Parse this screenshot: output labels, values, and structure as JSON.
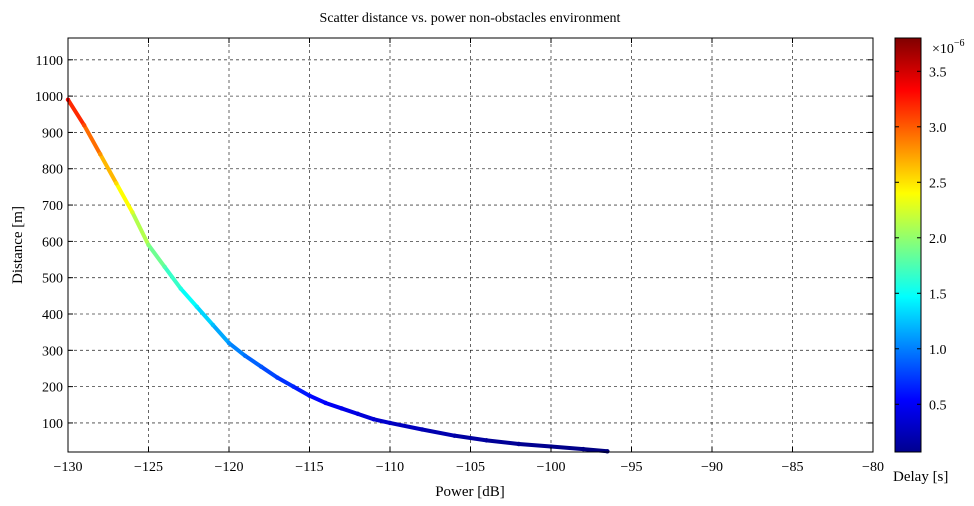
{
  "chart_data": {
    "type": "scatter",
    "title": "Scatter distance vs. power non-obstacles environment",
    "xlabel": "Power [dB]",
    "ylabel": "Distance [m]",
    "xlim": [
      -130,
      -80
    ],
    "ylim": [
      20,
      1160
    ],
    "xticks": [
      -130,
      -125,
      -120,
      -115,
      -110,
      -105,
      -100,
      -95,
      -90,
      -85,
      -80
    ],
    "yticks": [
      100,
      200,
      300,
      400,
      500,
      600,
      700,
      800,
      900,
      1000,
      1100
    ],
    "x_tick_labels": [
      "−130",
      "−125",
      "−120",
      "−115",
      "−110",
      "−105",
      "−100",
      "−95",
      "−90",
      "−85",
      "−80"
    ],
    "y_tick_labels": [
      "100",
      "200",
      "300",
      "400",
      "500",
      "600",
      "700",
      "800",
      "900",
      "1000",
      "1100"
    ],
    "grid": true,
    "series": [
      {
        "points": [
          {
            "x": -130.0,
            "y": 990,
            "delay": 3.3
          },
          {
            "x": -129.0,
            "y": 920,
            "delay": 3.07
          },
          {
            "x": -128.0,
            "y": 840,
            "delay": 2.8
          },
          {
            "x": -127.0,
            "y": 760,
            "delay": 2.53
          },
          {
            "x": -126.0,
            "y": 680,
            "delay": 2.27
          },
          {
            "x": -125.0,
            "y": 590,
            "delay": 1.97
          },
          {
            "x": -124.0,
            "y": 530,
            "delay": 1.77
          },
          {
            "x": -123.0,
            "y": 470,
            "delay": 1.57
          },
          {
            "x": -122.0,
            "y": 420,
            "delay": 1.4
          },
          {
            "x": -121.0,
            "y": 370,
            "delay": 1.23
          },
          {
            "x": -120.0,
            "y": 320,
            "delay": 1.07
          },
          {
            "x": -119.0,
            "y": 285,
            "delay": 0.95
          },
          {
            "x": -118.0,
            "y": 255,
            "delay": 0.85
          },
          {
            "x": -117.0,
            "y": 225,
            "delay": 0.75
          },
          {
            "x": -116.0,
            "y": 200,
            "delay": 0.67
          },
          {
            "x": -115.0,
            "y": 175,
            "delay": 0.58
          },
          {
            "x": -114.0,
            "y": 155,
            "delay": 0.52
          },
          {
            "x": -113.0,
            "y": 140,
            "delay": 0.47
          },
          {
            "x": -112.0,
            "y": 125,
            "delay": 0.42
          },
          {
            "x": -111.0,
            "y": 110,
            "delay": 0.37
          },
          {
            "x": -110.0,
            "y": 100,
            "delay": 0.33
          },
          {
            "x": -108.0,
            "y": 82,
            "delay": 0.27
          },
          {
            "x": -106.0,
            "y": 65,
            "delay": 0.22
          },
          {
            "x": -104.0,
            "y": 52,
            "delay": 0.17
          },
          {
            "x": -102.0,
            "y": 42,
            "delay": 0.14
          },
          {
            "x": -100.0,
            "y": 35,
            "delay": 0.12
          },
          {
            "x": -98.0,
            "y": 28,
            "delay": 0.09
          },
          {
            "x": -96.5,
            "y": 22,
            "delay": 0.07
          }
        ]
      }
    ],
    "colorbar": {
      "label": "Delay [s]",
      "multiplier_base": "×10",
      "multiplier_exponent": "−6",
      "range": [
        0.07,
        3.8
      ],
      "ticks": [
        0.5,
        1.0,
        1.5,
        2.0,
        2.5,
        3.0,
        3.5
      ],
      "tick_labels": [
        "0.5",
        "1.0",
        "1.5",
        "2.0",
        "2.5",
        "3.0",
        "3.5"
      ],
      "colormap": "jet"
    }
  }
}
